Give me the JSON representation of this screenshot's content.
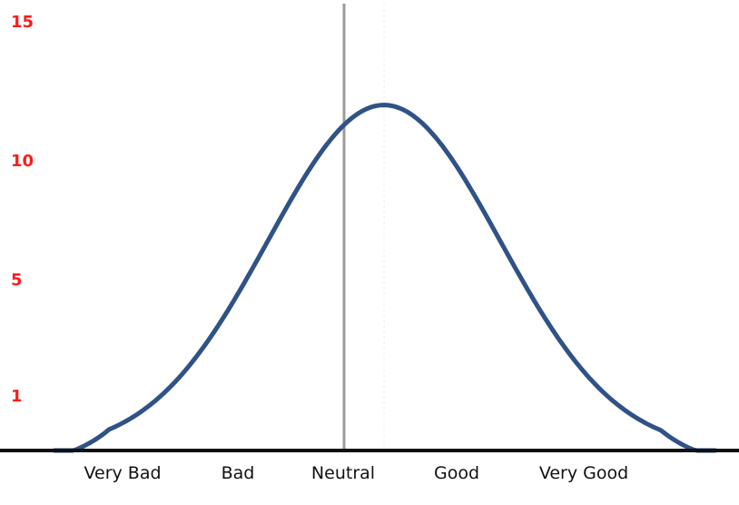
{
  "colors": {
    "curve": "#2f5287",
    "y_tick_labels": "#ff1a1a",
    "neutral_line": "#9c9c9c",
    "baseline": "#111111",
    "background": "#ffffff"
  },
  "chart_data": {
    "type": "line",
    "title": "",
    "xlabel": "",
    "ylabel": "",
    "categories": [
      "Very Bad",
      "Bad",
      "Neutral",
      "Good",
      "Very Good"
    ],
    "y_ticks": [
      1,
      5,
      10,
      15
    ],
    "ylim": [
      0,
      15
    ],
    "grid": false,
    "reference_line": "Neutral",
    "series": [
      {
        "values": [
          1.9,
          8.0,
          12.8,
          10.9,
          4.2
        ],
        "curve_shape": "bell",
        "peak": 13.3
      }
    ]
  }
}
